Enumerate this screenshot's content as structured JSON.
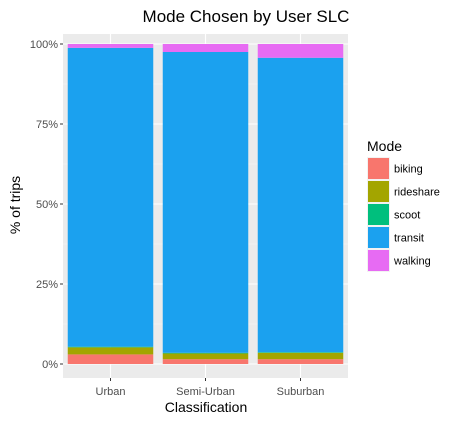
{
  "chart_data": {
    "type": "bar",
    "stacked": true,
    "title": "Mode Chosen by User SLC",
    "xlabel": "Classification",
    "ylabel": "% of trips",
    "categories": [
      "Urban",
      "Semi-Urban",
      "Suburban"
    ],
    "ylim": [
      0,
      1
    ],
    "yticks": [
      0,
      0.25,
      0.5,
      0.75,
      1.0
    ],
    "ytick_labels": [
      "0%",
      "25%",
      "50%",
      "75%",
      "100%"
    ],
    "grid": true,
    "legend": {
      "title": "Mode",
      "position": "right"
    },
    "series": [
      {
        "name": "biking",
        "color": "#F8766D",
        "values": [
          0.03,
          0.015,
          0.015
        ]
      },
      {
        "name": "rideshare",
        "color": "#A3A500",
        "values": [
          0.022,
          0.018,
          0.02
        ]
      },
      {
        "name": "scoot",
        "color": "#00BF7D",
        "values": [
          0.002,
          0.002,
          0.002
        ]
      },
      {
        "name": "transit",
        "color": "#1BA1EF",
        "values": [
          0.934,
          0.94,
          0.92
        ]
      },
      {
        "name": "walking",
        "color": "#E76BF3",
        "values": [
          0.012,
          0.025,
          0.043
        ]
      }
    ]
  }
}
